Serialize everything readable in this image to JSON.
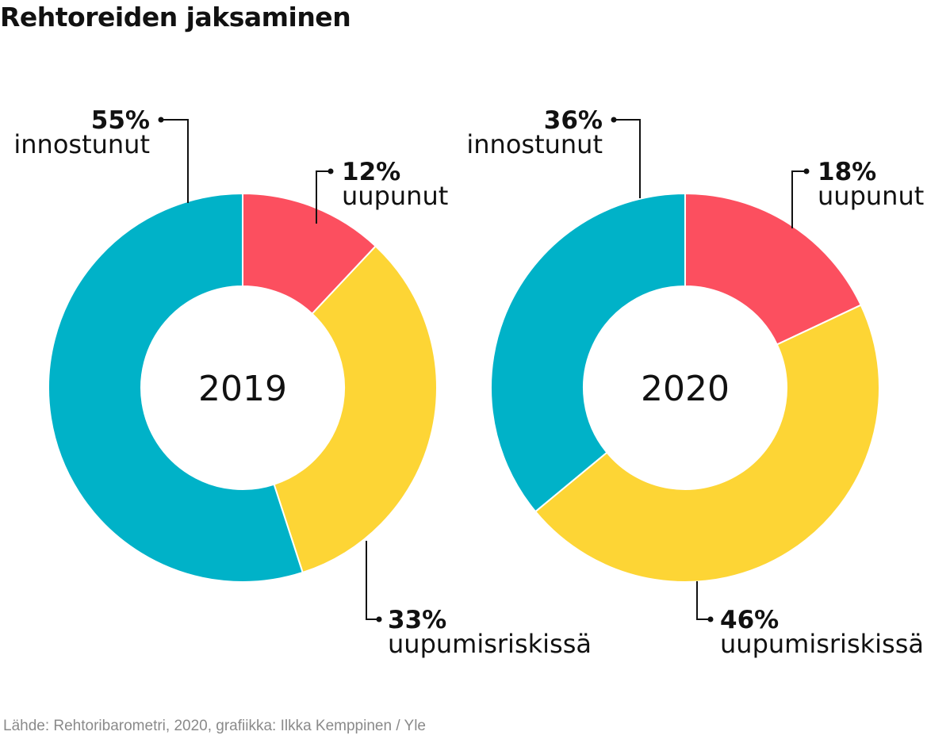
{
  "title": "Rehtoreiden jaksaminen",
  "source": "Lähde: Rehtoribarometri, 2020, grafiikka: Ilkka Kemppinen / Yle",
  "colors": {
    "uupunut": "#fc4f5f",
    "uupumisriskissa": "#fdd535",
    "innostunut": "#00b2c8"
  },
  "chart_data": [
    {
      "type": "pie",
      "variant": "donut",
      "center_label": "2019",
      "slices": [
        {
          "key": "uupunut",
          "label": "uupunut",
          "value": 12,
          "value_label": "12%"
        },
        {
          "key": "uupumisriskissa",
          "label": "uupumisriskissä",
          "value": 33,
          "value_label": "33%"
        },
        {
          "key": "innostunut",
          "label": "innostunut",
          "value": 55,
          "value_label": "55%"
        }
      ]
    },
    {
      "type": "pie",
      "variant": "donut",
      "center_label": "2020",
      "slices": [
        {
          "key": "uupunut",
          "label": "uupunut",
          "value": 18,
          "value_label": "18%"
        },
        {
          "key": "uupumisriskissa",
          "label": "uupumisriskissä",
          "value": 46,
          "value_label": "46%"
        },
        {
          "key": "innostunut",
          "label": "innostunut",
          "value": 36,
          "value_label": "36%"
        }
      ]
    }
  ]
}
